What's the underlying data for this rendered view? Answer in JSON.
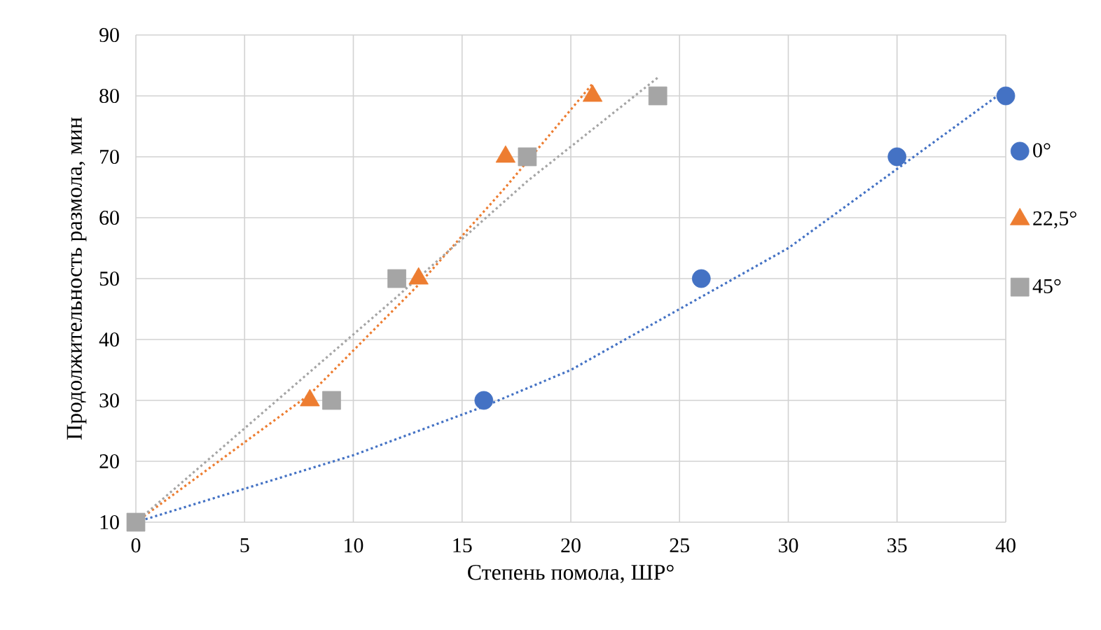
{
  "chart_data": {
    "type": "scatter",
    "xlabel": "Степень помола, ШР°",
    "ylabel": "Продолжительность размола, мин",
    "xlim": [
      0,
      40
    ],
    "ylim": [
      10,
      90
    ],
    "xticks": [
      0,
      5,
      10,
      15,
      20,
      25,
      30,
      35,
      40
    ],
    "yticks": [
      10,
      20,
      30,
      40,
      50,
      60,
      70,
      80,
      90
    ],
    "grid": true,
    "legend": "right",
    "series": [
      {
        "name": "0°",
        "color": "#4472c4",
        "marker": "circle",
        "x": [
          16,
          26,
          35,
          40
        ],
        "values": [
          30,
          50,
          70,
          80
        ]
      },
      {
        "name": "22,5°",
        "color": "#ed7d31",
        "marker": "triangle",
        "x": [
          8,
          13,
          17,
          21
        ],
        "values": [
          30,
          50,
          70,
          80
        ]
      },
      {
        "name": "45°",
        "color": "#a5a5a5",
        "marker": "square",
        "x": [
          0,
          9,
          12,
          18,
          24
        ],
        "values": [
          10,
          30,
          50,
          70,
          80
        ]
      },
      {
        "type": "line",
        "color": "#4472c4",
        "line_style": "dotted",
        "marker": "none",
        "x": [
          0,
          10,
          16,
          20,
          26,
          30,
          35,
          40
        ],
        "values": [
          10,
          21,
          29,
          35,
          47,
          55,
          68,
          81
        ]
      },
      {
        "type": "line",
        "color": "#ed7d31",
        "line_style": "dotted",
        "marker": "none",
        "x": [
          0,
          8,
          13,
          17,
          21
        ],
        "values": [
          10,
          31,
          49,
          65,
          82
        ]
      },
      {
        "type": "line",
        "color": "#a5a5a5",
        "line_style": "dotted",
        "marker": "none",
        "x": [
          0,
          12,
          18,
          24
        ],
        "values": [
          10,
          47,
          66,
          83
        ]
      }
    ]
  }
}
